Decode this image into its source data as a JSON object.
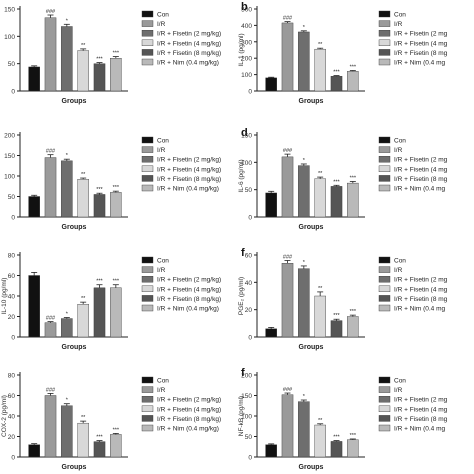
{
  "figure": {
    "legend_labels": [
      "Con",
      "I/R",
      "I/R + Fisetin (2 mg/kg)",
      "I/R + Fisetin (4 mg/kg)",
      "I/R + Fisetin (8 mg/kg)",
      "I/R + Nim (0.4 mg/kg)"
    ],
    "colors": {
      "series": [
        "#111111",
        "#9a9a9a",
        "#6e6e6e",
        "#d8d8d8",
        "#555555",
        "#b9b9b9"
      ],
      "axis": "#222222"
    }
  },
  "chart_data": [
    {
      "type": "bar",
      "panel": "",
      "ylabel": "",
      "xlabel": "Groups",
      "ylim": [
        0,
        150
      ],
      "yticks": [
        0,
        50,
        100,
        150
      ],
      "categories": [
        "Con",
        "I/R",
        "I/R + Fisetin (2 mg/kg)",
        "I/R + Fisetin (4 mg/kg)",
        "I/R + Fisetin (8 mg/kg)",
        "I/R + Nim (0.4 mg/kg)"
      ],
      "values": [
        44,
        134,
        118,
        74,
        50,
        60
      ],
      "errors": [
        2,
        5,
        4,
        3,
        2,
        3
      ],
      "annotations": [
        "",
        "###",
        "*",
        "**",
        "***",
        "***"
      ],
      "legend_labels": [
        "Con",
        "I/R",
        "I/R + Fisetin (2 mg/kg)",
        "I/R + Fisetin (4 mg/kg)",
        "I/R + Fisetin (8 mg/kg)",
        "I/R + Nim (0.4 mg/kg)"
      ]
    },
    {
      "type": "bar",
      "panel": "b",
      "ylabel": "IL-1 (pg/ml)",
      "xlabel": "Groups",
      "ylim": [
        0,
        500
      ],
      "yticks": [
        0,
        100,
        200,
        300,
        400,
        500
      ],
      "categories": [
        "Con",
        "I/R",
        "I/R + Fisetin (2 mg/kg)",
        "I/R + Fisetin (4 mg/kg)",
        "I/R + Fisetin (8 mg/kg)",
        "I/R + Nim (0.4 mg/kg)"
      ],
      "values": [
        80,
        415,
        360,
        255,
        90,
        120
      ],
      "errors": [
        4,
        8,
        7,
        6,
        4,
        5
      ],
      "annotations": [
        "",
        "###",
        "*",
        "**",
        "***",
        "***"
      ],
      "legend_labels": [
        "Con",
        "I/R",
        "I/R + Fisetin (2 mg",
        "I/R + Fisetin (4 mg",
        "I/R + Fisetin (8 mg",
        "I/R + Nim (0.4 mg"
      ]
    },
    {
      "type": "bar",
      "panel": "",
      "ylabel": "",
      "xlabel": "Groups",
      "ylim": [
        0,
        200
      ],
      "yticks": [
        0,
        50,
        100,
        150,
        200
      ],
      "categories": [
        "Con",
        "I/R",
        "I/R + Fisetin (2 mg/kg)",
        "I/R + Fisetin (4 mg/kg)",
        "I/R + Fisetin (8 mg/kg)",
        "I/R + Nim (0.4 mg/kg)"
      ],
      "values": [
        50,
        145,
        137,
        92,
        55,
        60
      ],
      "errors": [
        3,
        7,
        4,
        3,
        3,
        3
      ],
      "annotations": [
        "",
        "###",
        "*",
        "**",
        "***",
        "***"
      ],
      "legend_labels": [
        "Con",
        "I/R",
        "I/R + Fisetin (2 mg/kg)",
        "I/R + Fisetin (4 mg/kg)",
        "I/R + Fisetin (8 mg/kg)",
        "I/R + Nim (0.4 mg/kg)"
      ]
    },
    {
      "type": "bar",
      "panel": "d",
      "ylabel": "IL-6 (pg/ml)",
      "xlabel": "Groups",
      "ylim": [
        0,
        150
      ],
      "yticks": [
        0,
        50,
        100,
        150
      ],
      "categories": [
        "Con",
        "I/R",
        "I/R + Fisetin (2 mg/kg)",
        "I/R + Fisetin (4 mg/kg)",
        "I/R + Fisetin (8 mg/kg)",
        "I/R + Nim (0.4 mg/kg)"
      ],
      "values": [
        44,
        110,
        94,
        70,
        56,
        62
      ],
      "errors": [
        3,
        5,
        3,
        3,
        2,
        3
      ],
      "annotations": [
        "",
        "###",
        "*",
        "**",
        "***",
        "***"
      ],
      "legend_labels": [
        "Con",
        "I/R",
        "I/R + Fisetin (2 mg",
        "I/R + Fisetin (4 mg",
        "I/R + Fisetin (8 mg",
        "I/R + Nim (0.4 mg"
      ]
    },
    {
      "type": "bar",
      "panel": "",
      "ylabel": "IL-10 (pg/ml)",
      "xlabel": "Groups",
      "ylim": [
        0,
        80
      ],
      "yticks": [
        0,
        20,
        40,
        60,
        80
      ],
      "categories": [
        "Con",
        "I/R",
        "I/R + Fisetin (2 mg/kg)",
        "I/R + Fisetin (4 mg/kg)",
        "I/R + Fisetin (8 mg/kg)",
        "I/R + Nim (0.4 mg/kg)"
      ],
      "values": [
        60,
        14,
        18,
        32,
        48,
        48
      ],
      "errors": [
        3,
        1,
        1,
        2,
        3,
        3
      ],
      "annotations": [
        "",
        "###",
        "*",
        "**",
        "***",
        "***"
      ],
      "legend_labels": [
        "Con",
        "I/R",
        "I/R + Fisetin (2 mg/kg)",
        "I/R + Fisetin (4 mg/kg)",
        "I/R + Fisetin (8 mg/kg)",
        "I/R + Nim (0.4 mg/kg)"
      ]
    },
    {
      "type": "bar",
      "panel": "f",
      "ylabel": "PGE₂ (pg/ml)",
      "xlabel": "Groups",
      "ylim": [
        0,
        60
      ],
      "yticks": [
        0,
        20,
        40,
        60
      ],
      "categories": [
        "Con",
        "I/R",
        "I/R + Fisetin (2 mg/kg)",
        "I/R + Fisetin (4 mg/kg)",
        "I/R + Fisetin (8 mg/kg)",
        "I/R + Nim (0.4 mg/kg)"
      ],
      "values": [
        6,
        54,
        50,
        30,
        12,
        15
      ],
      "errors": [
        1,
        2,
        2,
        3,
        1,
        1
      ],
      "annotations": [
        "",
        "###",
        "*",
        "**",
        "***",
        "***"
      ],
      "legend_labels": [
        "Con",
        "I/R",
        "I/R + Fisetin (2 mg",
        "I/R + Fisetin (4 mg",
        "I/R + Fisetin (8 mg",
        "I/R + Nim (0.4 mg"
      ]
    },
    {
      "type": "bar",
      "panel": "",
      "ylabel": "COX-2 (pg/ml)",
      "xlabel": "Groups",
      "ylim": [
        0,
        80
      ],
      "yticks": [
        0,
        20,
        40,
        60,
        80
      ],
      "categories": [
        "Con",
        "I/R",
        "I/R + Fisetin (2 mg/kg)",
        "I/R + Fisetin (4 mg/kg)",
        "I/R + Fisetin (8 mg/kg)",
        "I/R + Nim (0.4 mg/kg)"
      ],
      "values": [
        12,
        60,
        50,
        33,
        15,
        22
      ],
      "errors": [
        1,
        2,
        2,
        2,
        1,
        1
      ],
      "annotations": [
        "",
        "###",
        "*",
        "**",
        "***",
        "***"
      ],
      "legend_labels": [
        "Con",
        "I/R",
        "I/R + Fisetin (2 mg/kg)",
        "I/R + Fisetin (4 mg/kg)",
        "I/R + Fisetin (8 mg/kg)",
        "I/R + Nim (0.4 mg/kg)"
      ]
    },
    {
      "type": "bar",
      "panel": "f",
      "ylabel": "NF-kB (pg/ml)",
      "xlabel": "Groups",
      "ylim": [
        0,
        200
      ],
      "yticks": [
        0,
        50,
        100,
        150,
        200
      ],
      "categories": [
        "Con",
        "I/R",
        "I/R + Fisetin (2 mg/kg)",
        "I/R + Fisetin (4 mg/kg)",
        "I/R + Fisetin (8 mg/kg)",
        "I/R + Nim (0.4 mg/kg)"
      ],
      "values": [
        30,
        152,
        135,
        78,
        38,
        42
      ],
      "errors": [
        2,
        4,
        4,
        3,
        2,
        2
      ],
      "annotations": [
        "",
        "###",
        "*",
        "**",
        "***",
        "***"
      ],
      "legend_labels": [
        "Con",
        "I/R",
        "I/R + Fisetin (2 mg",
        "I/R + Fisetin (4 mg",
        "I/R + Fisetin (8 mg",
        "I/R + Nim (0.4 mg"
      ]
    }
  ]
}
